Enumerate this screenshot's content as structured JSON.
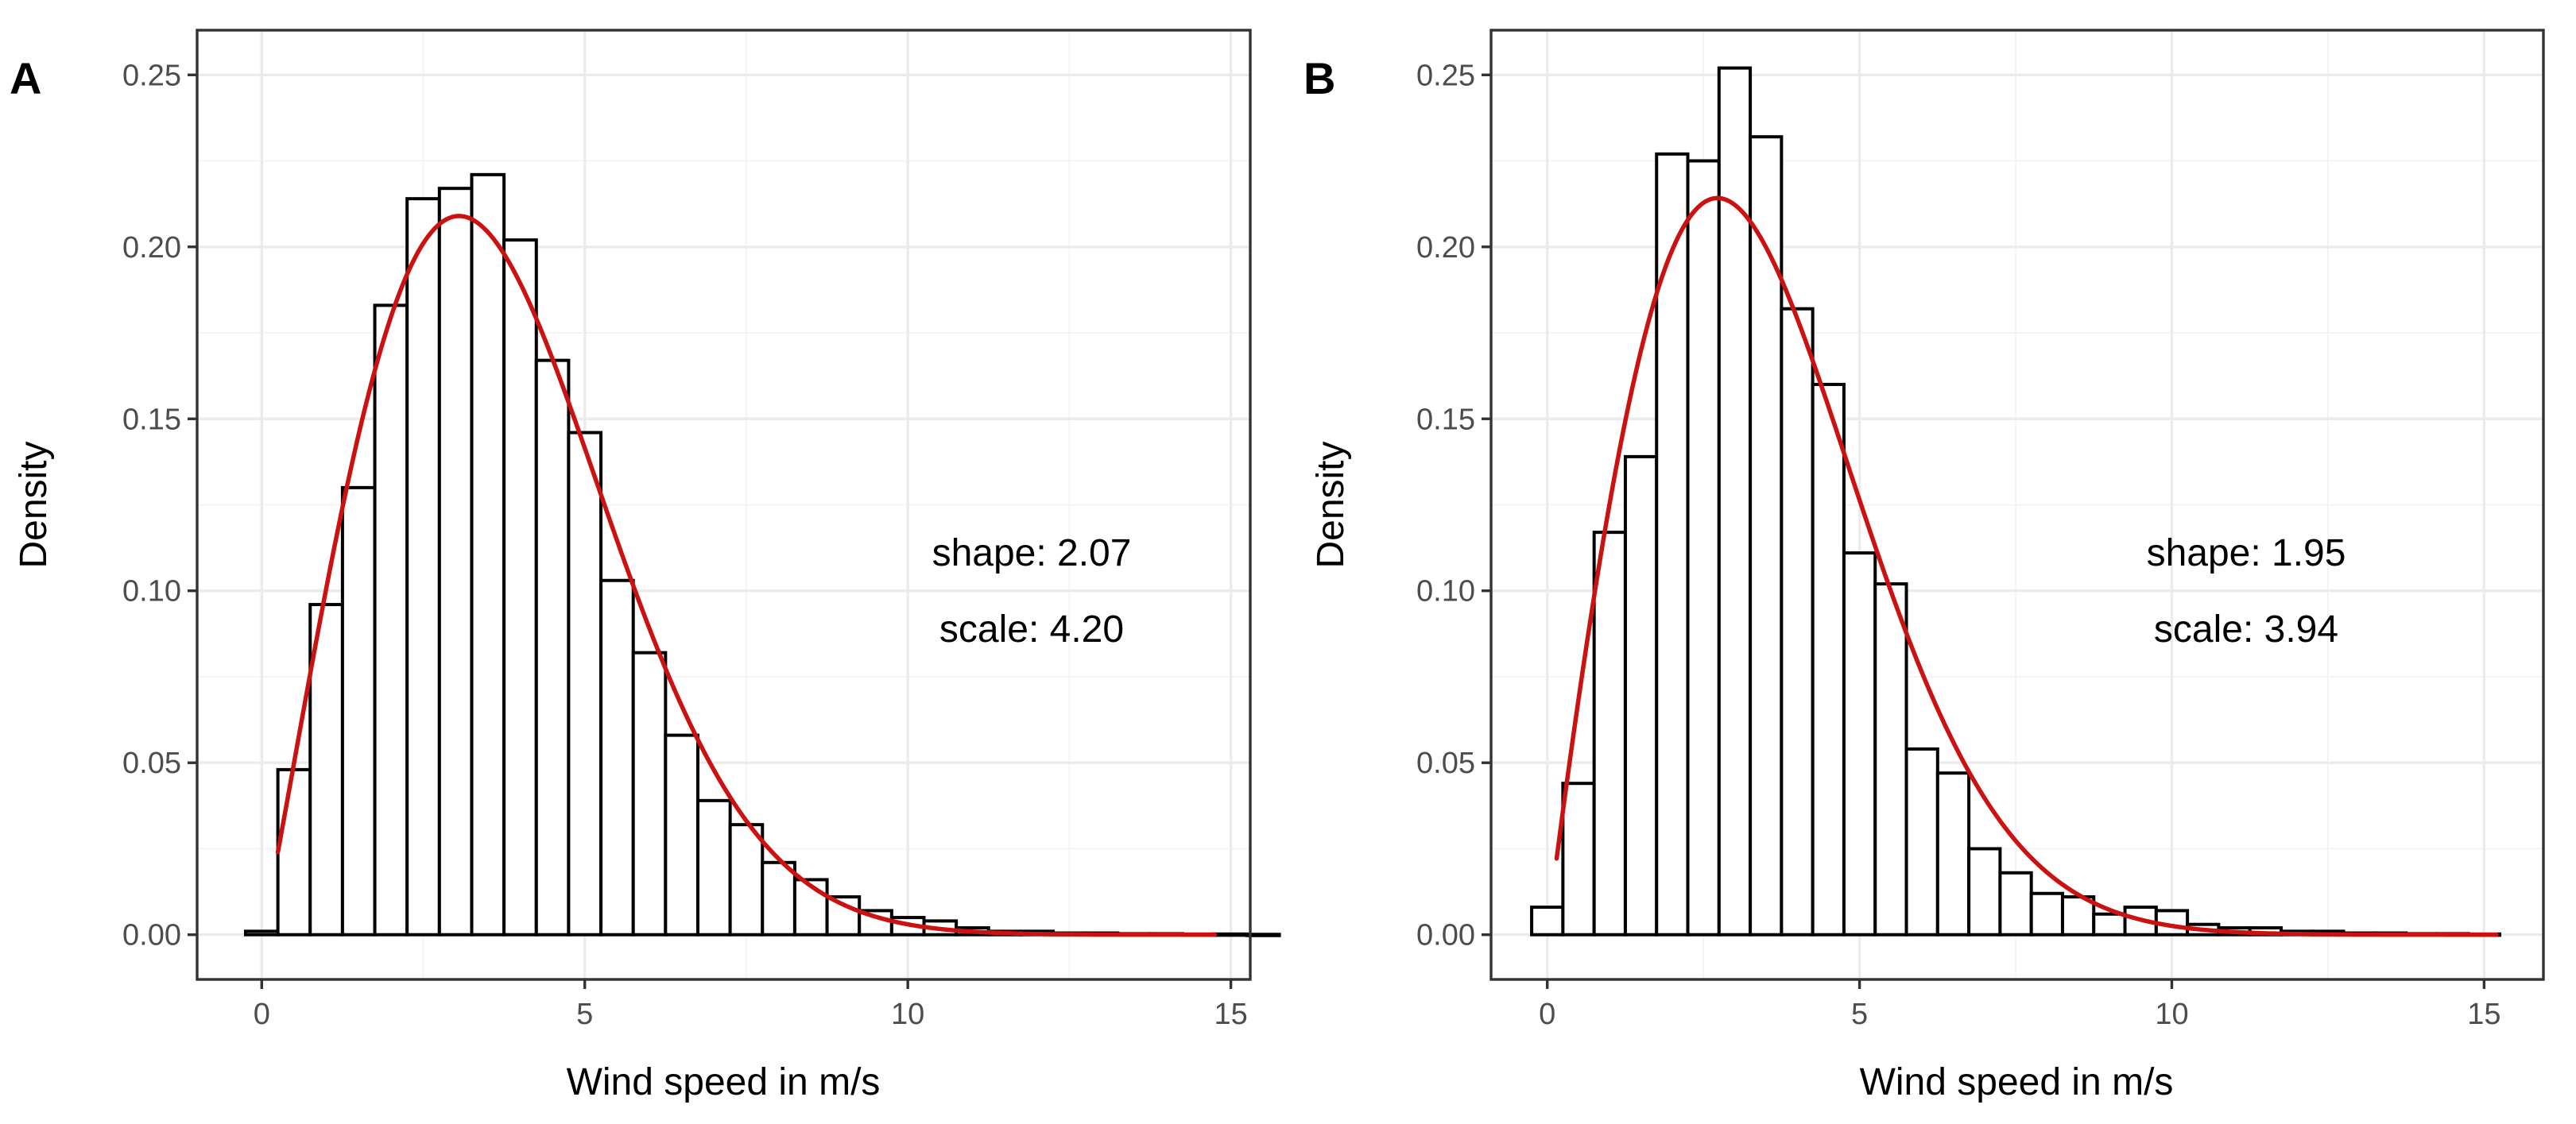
{
  "chart_data": [
    {
      "type": "bar",
      "tag": "A",
      "xlabel": "Wind speed in m/s",
      "ylabel": "Density",
      "xlim": [
        -1,
        15.3
      ],
      "ylim": [
        -0.013,
        0.263
      ],
      "xticks": [
        0,
        5,
        10,
        15
      ],
      "xtick_labels": [
        "0",
        "5",
        "10",
        "15"
      ],
      "yticks": [
        0,
        0.05,
        0.1,
        0.15,
        0.2,
        0.25
      ],
      "ytick_labels": [
        "0.00",
        "0.05",
        "0.10",
        "0.15",
        "0.20",
        "0.25"
      ],
      "grid": true,
      "bin_width": 0.5,
      "bins_start": -0.25,
      "values": [
        0.001,
        0.048,
        0.096,
        0.13,
        0.183,
        0.214,
        0.217,
        0.221,
        0.202,
        0.167,
        0.146,
        0.103,
        0.082,
        0.058,
        0.039,
        0.032,
        0.021,
        0.016,
        0.011,
        0.007,
        0.005,
        0.004,
        0.002,
        0.001,
        0.001,
        0.0005,
        0.0005,
        0.0003,
        0.0003,
        0.0002,
        0.0002,
        0.0001
      ],
      "fit": {
        "distribution": "weibull",
        "shape": 2.07,
        "scale": 4.2,
        "x_start": 0.25,
        "x_end": 14.75,
        "color": "#cc1111"
      },
      "annotation": [
        "shape: 2.07",
        "scale: 4.20"
      ]
    },
    {
      "type": "bar",
      "tag": "B",
      "xlabel": "Wind speed in m/s",
      "ylabel": "Density",
      "xlim": [
        -0.9,
        15.95
      ],
      "ylim": [
        -0.013,
        0.263
      ],
      "xticks": [
        0,
        5,
        10,
        15
      ],
      "xtick_labels": [
        "0",
        "5",
        "10",
        "15"
      ],
      "yticks": [
        0,
        0.05,
        0.1,
        0.15,
        0.2,
        0.25
      ],
      "ytick_labels": [
        "0.00",
        "0.05",
        "0.10",
        "0.15",
        "0.20",
        "0.25"
      ],
      "grid": true,
      "bin_width": 0.5,
      "bins_start": -0.25,
      "values": [
        0.008,
        0.044,
        0.117,
        0.139,
        0.227,
        0.225,
        0.252,
        0.232,
        0.182,
        0.16,
        0.111,
        0.102,
        0.054,
        0.047,
        0.025,
        0.018,
        0.012,
        0.011,
        0.006,
        0.008,
        0.007,
        0.003,
        0.002,
        0.002,
        0.001,
        0.001,
        0.0005,
        0.0005,
        0.0003,
        0.0003,
        0.0002
      ],
      "fit": {
        "distribution": "weibull",
        "shape": 1.95,
        "scale": 3.94,
        "x_start": 0.15,
        "x_end": 15.2,
        "color": "#cc1111"
      },
      "annotation": [
        "shape: 1.95",
        "scale: 3.94"
      ]
    }
  ]
}
